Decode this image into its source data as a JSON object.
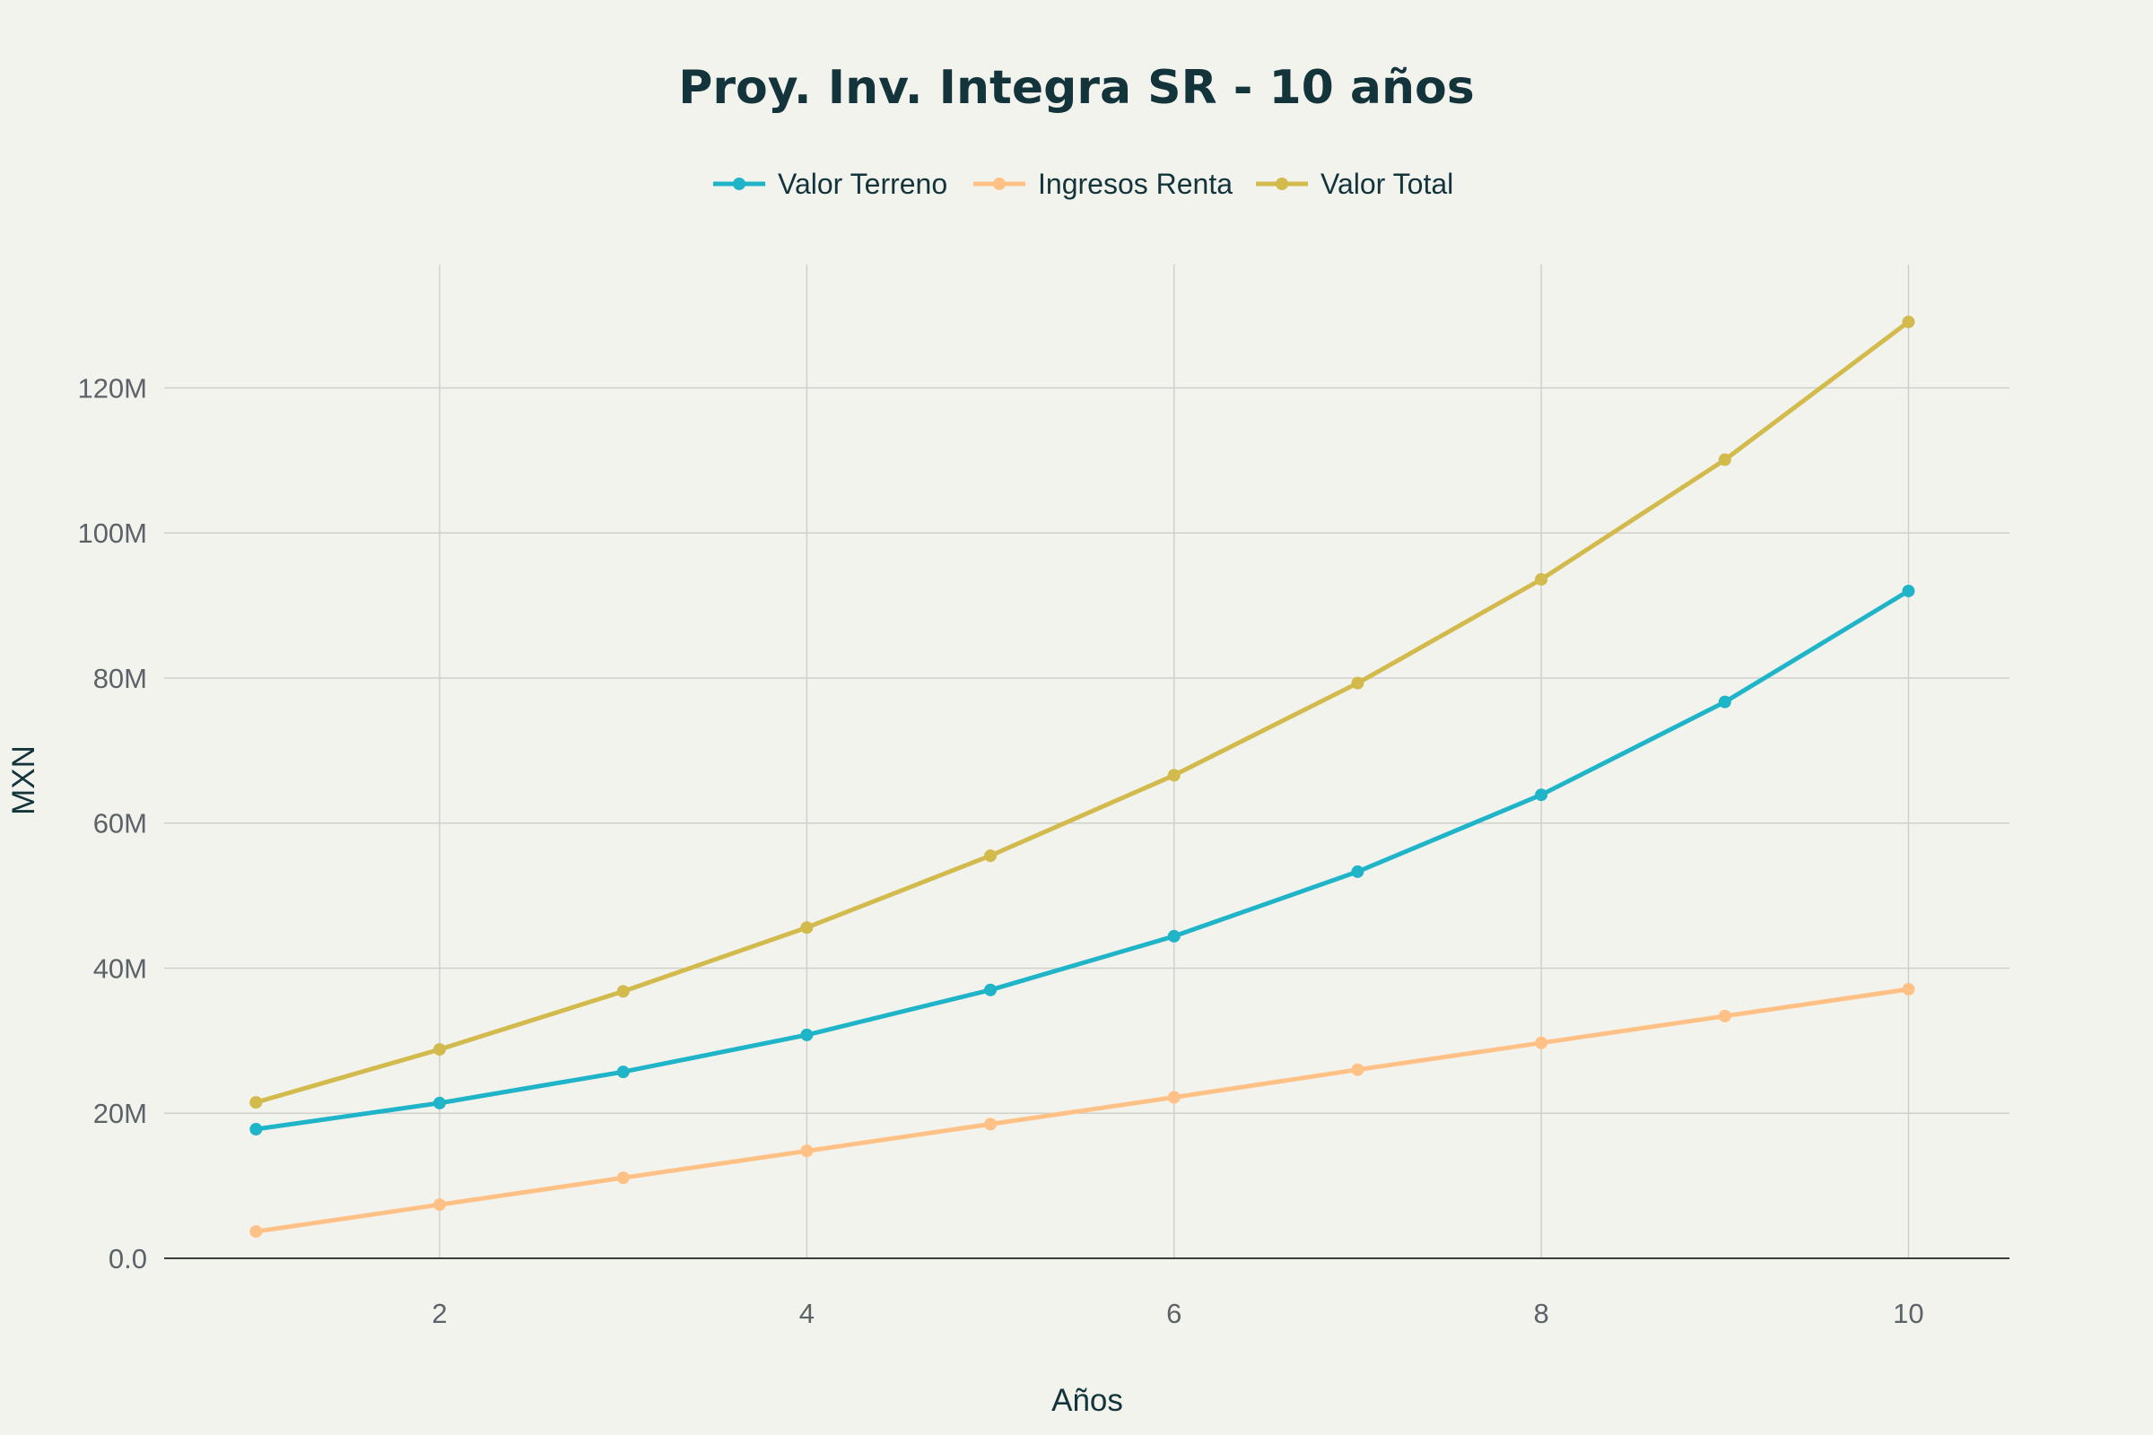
{
  "chart_data": {
    "type": "line",
    "title": "Proy. Inv. Integra SR - 10 años",
    "xlabel": "Años",
    "ylabel": "MXN",
    "x": [
      1,
      2,
      3,
      4,
      5,
      6,
      7,
      8,
      9,
      10
    ],
    "xlim": [
      0.5,
      10.55
    ],
    "ylim": [
      0,
      137
    ],
    "x_ticks": [
      2,
      4,
      6,
      8,
      10
    ],
    "x_tick_labels": [
      "2",
      "4",
      "6",
      "8",
      "10"
    ],
    "y_ticks": [
      0,
      20,
      40,
      60,
      80,
      100,
      120
    ],
    "y_tick_labels": [
      "0.0",
      "20M",
      "40M",
      "60M",
      "80M",
      "100M",
      "120M"
    ],
    "y_unit": "millions MXN",
    "grid": true,
    "legend_position": "top-center",
    "series": [
      {
        "name": "Valor Terreno",
        "color": "#1fb4c8",
        "values": [
          17.8,
          21.4,
          25.7,
          30.8,
          37.0,
          44.4,
          53.3,
          63.9,
          76.7,
          92.0
        ]
      },
      {
        "name": "Ingresos Renta",
        "color": "#ffc185",
        "values": [
          3.7,
          7.4,
          11.1,
          14.8,
          18.5,
          22.2,
          26.0,
          29.7,
          33.4,
          37.1
        ]
      },
      {
        "name": "Valor Total",
        "color": "#d2ba4c",
        "values": [
          21.5,
          28.8,
          36.8,
          45.6,
          55.5,
          66.6,
          79.3,
          93.6,
          110.1,
          129.1
        ]
      }
    ]
  }
}
